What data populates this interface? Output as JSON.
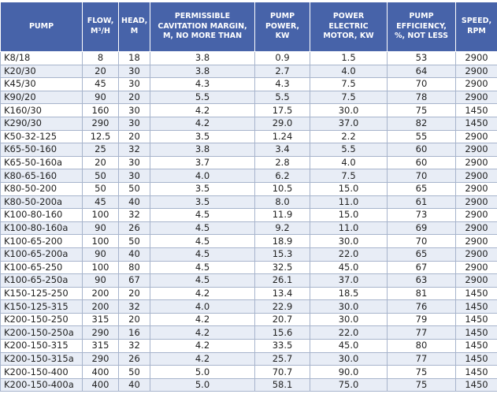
{
  "table": {
    "header": [
      "PUMP",
      "FLOW, M³/H",
      "HEAD, M",
      "PERMISSIBLE CAVITATION MARGIN, M, NO MORE THAN",
      "PUMP POWER, KW",
      "POWER ELECTRIC MOTOR, KW",
      "PUMP EFFICIENCY, %, NOT LESS",
      "SPEED, RPM"
    ],
    "rows": [
      [
        "K8/18",
        "8",
        "18",
        "3.8",
        "0.9",
        "1.5",
        "53",
        "2900"
      ],
      [
        "K20/30",
        "20",
        "30",
        "3.8",
        "2.7",
        "4.0",
        "64",
        "2900"
      ],
      [
        "K45/30",
        "45",
        "30",
        "4.3",
        "4.3",
        "7.5",
        "70",
        "2900"
      ],
      [
        "K90/20",
        "90",
        "20",
        "5.5",
        "5.5",
        "7.5",
        "78",
        "2900"
      ],
      [
        "K160/30",
        "160",
        "30",
        "4.2",
        "17.5",
        "30.0",
        "75",
        "1450"
      ],
      [
        "K290/30",
        "290",
        "30",
        "4.2",
        "29.0",
        "37.0",
        "82",
        "1450"
      ],
      [
        "K50-32-125",
        "12.5",
        "20",
        "3.5",
        "1.24",
        "2.2",
        "55",
        "2900"
      ],
      [
        "K65-50-160",
        "25",
        "32",
        "3.8",
        "3.4",
        "5.5",
        "60",
        "2900"
      ],
      [
        "K65-50-160a",
        "20",
        "30",
        "3.7",
        "2.8",
        "4.0",
        "60",
        "2900"
      ],
      [
        "K80-65-160",
        "50",
        "30",
        "4.0",
        "6.2",
        "7.5",
        "70",
        "2900"
      ],
      [
        "K80-50-200",
        "50",
        "50",
        "3.5",
        "10.5",
        "15.0",
        "65",
        "2900"
      ],
      [
        "K80-50-200a",
        "45",
        "40",
        "3.5",
        "8.0",
        "11.0",
        "61",
        "2900"
      ],
      [
        "K100-80-160",
        "100",
        "32",
        "4.5",
        "11.9",
        "15.0",
        "73",
        "2900"
      ],
      [
        "K100-80-160a",
        "90",
        "26",
        "4.5",
        "9.2",
        "11.0",
        "69",
        "2900"
      ],
      [
        "K100-65-200",
        "100",
        "50",
        "4.5",
        "18.9",
        "30.0",
        "70",
        "2900"
      ],
      [
        "K100-65-200a",
        "90",
        "40",
        "4.5",
        "15.3",
        "22.0",
        "65",
        "2900"
      ],
      [
        "K100-65-250",
        "100",
        "80",
        "4.5",
        "32.5",
        "45.0",
        "67",
        "2900"
      ],
      [
        "K100-65-250a",
        "90",
        "67",
        "4.5",
        "26.1",
        "37.0",
        "63",
        "2900"
      ],
      [
        "K150-125-250",
        "200",
        "20",
        "4.2",
        "13.4",
        "18.5",
        "81",
        "1450"
      ],
      [
        "K150-125-315",
        "200",
        "32",
        "4.0",
        "22.9",
        "30.0",
        "76",
        "1450"
      ],
      [
        "K200-150-250",
        "315",
        "20",
        "4.2",
        "20.7",
        "30.0",
        "79",
        "1450"
      ],
      [
        "K200-150-250a",
        "290",
        "16",
        "4.2",
        "15.6",
        "22.0",
        "77",
        "1450"
      ],
      [
        "K200-150-315",
        "315",
        "32",
        "4.2",
        "33.5",
        "45.0",
        "80",
        "1450"
      ],
      [
        "K200-150-315a",
        "290",
        "26",
        "4.2",
        "25.7",
        "30.0",
        "77",
        "1450"
      ],
      [
        "K200-150-400",
        "400",
        "50",
        "5.0",
        "70.7",
        "90.0",
        "75",
        "1450"
      ],
      [
        "K200-150-400a",
        "400",
        "40",
        "5.0",
        "58.1",
        "75.0",
        "75",
        "1450"
      ]
    ]
  }
}
